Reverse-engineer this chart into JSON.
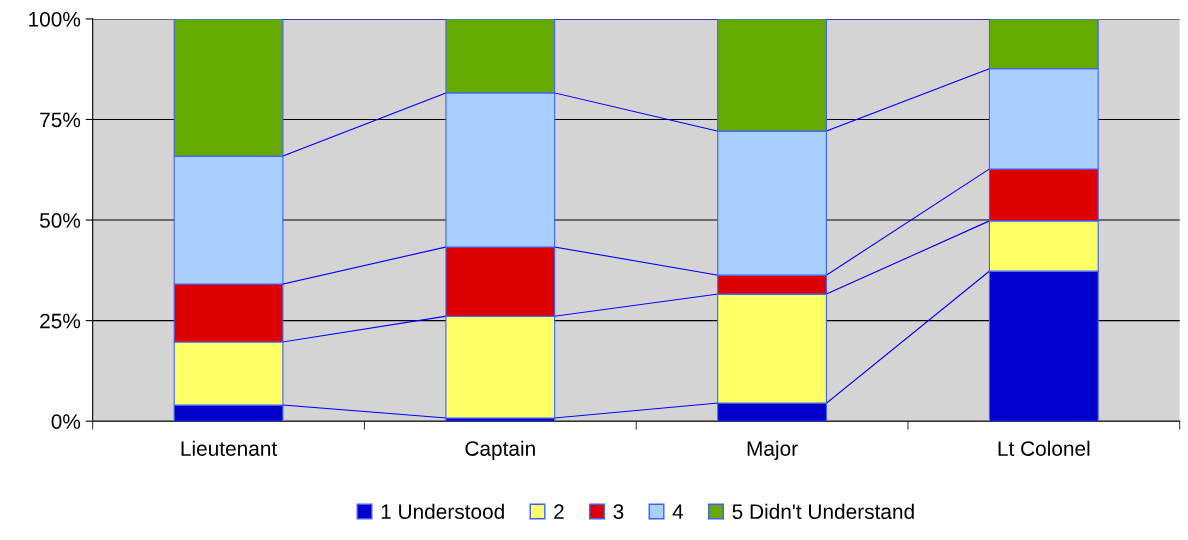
{
  "chart_data": {
    "type": "bar",
    "stacked": true,
    "categories": [
      "Lieutenant",
      "Captain",
      "Major",
      "Lt Colonel"
    ],
    "series": [
      {
        "name": "1 Understood",
        "color": "#0000cc",
        "values": [
          4.0,
          0.8,
          4.5,
          37.3
        ]
      },
      {
        "name": "2",
        "color": "#ffff66",
        "values": [
          15.7,
          25.3,
          27.1,
          12.5
        ]
      },
      {
        "name": "3",
        "color": "#dd0000",
        "values": [
          14.4,
          17.2,
          4.7,
          12.9
        ]
      },
      {
        "name": "4",
        "color": "#a8d0ff",
        "values": [
          31.8,
          38.3,
          35.8,
          24.9
        ]
      },
      {
        "name": "5 Didn't Understand",
        "color": "#66aa00",
        "values": [
          34.1,
          18.4,
          27.9,
          12.4
        ]
      }
    ],
    "ylim": [
      0,
      100
    ],
    "yticks": [
      {
        "value": 0,
        "label": "0%"
      },
      {
        "value": 25,
        "label": "25%"
      },
      {
        "value": 50,
        "label": "50%"
      },
      {
        "value": 75,
        "label": "75%"
      },
      {
        "value": 100,
        "label": "100%"
      }
    ],
    "grid": "y",
    "legend": "bottom"
  }
}
